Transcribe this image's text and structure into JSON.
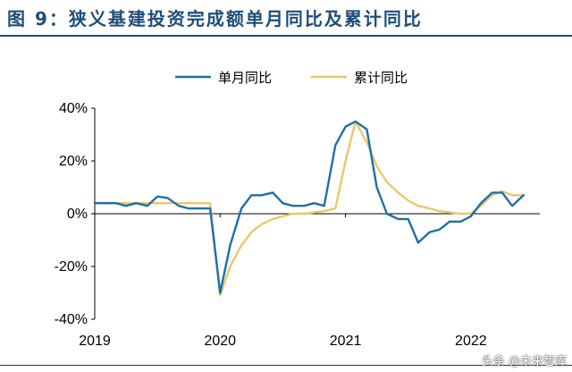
{
  "figure": {
    "title": "图 9：狭义基建投资完成额单月同比及累计同比",
    "watermark": "头条 @未来智库"
  },
  "colors": {
    "title": "#1f4e79",
    "monthly": "#1f6fa8",
    "cumulative": "#e8c96a",
    "axis": "#000000"
  },
  "chart_data": {
    "type": "line",
    "title": "",
    "xlabel": "",
    "ylabel": "",
    "ylim": [
      -40,
      40
    ],
    "yticks": [
      -40,
      -20,
      0,
      20,
      40
    ],
    "ytick_labels": [
      "-40%",
      "-20%",
      "0%",
      "20%",
      "40%"
    ],
    "xlim": [
      2019.0,
      2022.55
    ],
    "xticks": [
      2019,
      2020,
      2021,
      2022
    ],
    "xtick_labels": [
      "2019",
      "2020",
      "2021",
      "2022"
    ],
    "grid": false,
    "legend": "top-center",
    "series": [
      {
        "name": "单月同比",
        "color": "#1f6fa8",
        "points": [
          [
            2019.0,
            4
          ],
          [
            2019.08,
            4
          ],
          [
            2019.17,
            4
          ],
          [
            2019.25,
            3
          ],
          [
            2019.33,
            4
          ],
          [
            2019.42,
            3
          ],
          [
            2019.5,
            6.5
          ],
          [
            2019.58,
            6
          ],
          [
            2019.67,
            3
          ],
          [
            2019.75,
            2
          ],
          [
            2019.83,
            2
          ],
          [
            2019.92,
            2
          ],
          [
            2020.0,
            -30
          ],
          [
            2020.08,
            -12
          ],
          [
            2020.17,
            2
          ],
          [
            2020.25,
            7
          ],
          [
            2020.33,
            7
          ],
          [
            2020.42,
            8
          ],
          [
            2020.5,
            4
          ],
          [
            2020.58,
            3
          ],
          [
            2020.67,
            3
          ],
          [
            2020.75,
            4
          ],
          [
            2020.83,
            3
          ],
          [
            2020.92,
            26
          ],
          [
            2021.0,
            33
          ],
          [
            2021.08,
            35
          ],
          [
            2021.17,
            32
          ],
          [
            2021.25,
            10
          ],
          [
            2021.33,
            0
          ],
          [
            2021.42,
            -2
          ],
          [
            2021.5,
            -2
          ],
          [
            2021.58,
            -11
          ],
          [
            2021.67,
            -7
          ],
          [
            2021.75,
            -6
          ],
          [
            2021.83,
            -3
          ],
          [
            2021.92,
            -3
          ],
          [
            2022.0,
            -1
          ],
          [
            2022.08,
            4
          ],
          [
            2022.17,
            8
          ],
          [
            2022.25,
            8
          ],
          [
            2022.33,
            3
          ],
          [
            2022.42,
            7
          ]
        ]
      },
      {
        "name": "累计同比",
        "color": "#e8c96a",
        "points": [
          [
            2019.0,
            4
          ],
          [
            2019.08,
            4
          ],
          [
            2019.17,
            4
          ],
          [
            2019.25,
            4
          ],
          [
            2019.33,
            4
          ],
          [
            2019.42,
            4
          ],
          [
            2019.5,
            4
          ],
          [
            2019.58,
            4
          ],
          [
            2019.67,
            4
          ],
          [
            2019.75,
            4
          ],
          [
            2019.83,
            4
          ],
          [
            2019.92,
            4
          ],
          [
            2020.0,
            -31
          ],
          [
            2020.08,
            -20
          ],
          [
            2020.17,
            -12
          ],
          [
            2020.25,
            -7
          ],
          [
            2020.33,
            -4
          ],
          [
            2020.42,
            -2
          ],
          [
            2020.5,
            -1
          ],
          [
            2020.58,
            0
          ],
          [
            2020.67,
            0
          ],
          [
            2020.75,
            0.5
          ],
          [
            2020.83,
            1
          ],
          [
            2020.92,
            2
          ],
          [
            2021.0,
            20
          ],
          [
            2021.08,
            35
          ],
          [
            2021.17,
            27
          ],
          [
            2021.25,
            18
          ],
          [
            2021.33,
            12
          ],
          [
            2021.42,
            8
          ],
          [
            2021.5,
            5
          ],
          [
            2021.58,
            3
          ],
          [
            2021.67,
            2
          ],
          [
            2021.75,
            1
          ],
          [
            2021.83,
            0.5
          ],
          [
            2021.92,
            0
          ],
          [
            2022.0,
            0
          ],
          [
            2022.08,
            3
          ],
          [
            2022.17,
            7
          ],
          [
            2022.25,
            8.5
          ],
          [
            2022.33,
            7
          ],
          [
            2022.42,
            7
          ]
        ]
      }
    ]
  }
}
